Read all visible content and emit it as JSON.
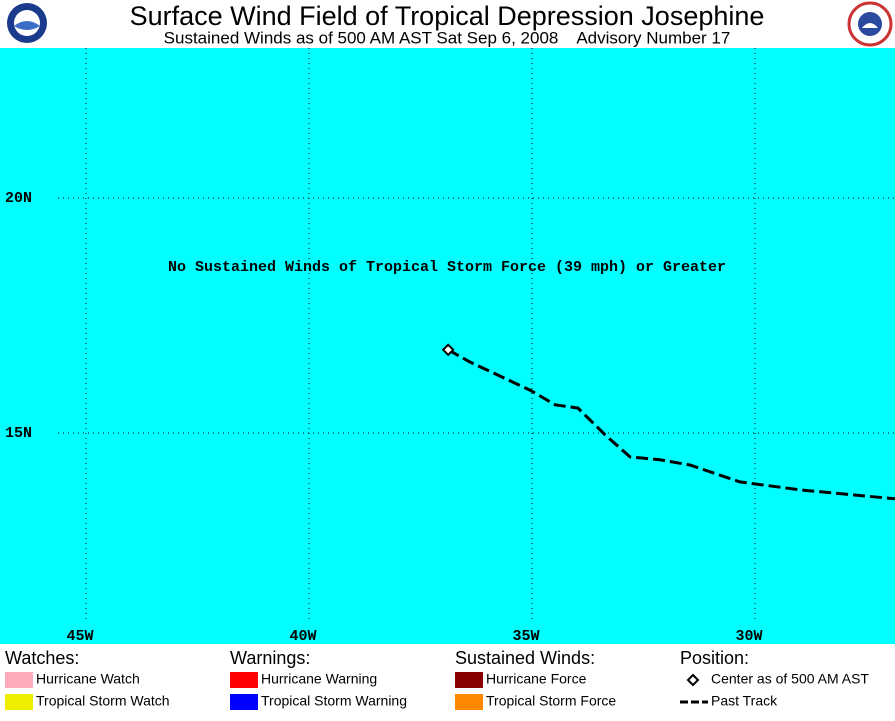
{
  "header": {
    "title": "Surface Wind Field of Tropical Depression Josephine",
    "subtitle": "Sustained Winds as of 500 AM AST Sat Sep 6, 2008    Advisory Number 17"
  },
  "map": {
    "message": "No Sustained Winds of Tropical Storm Force (39 mph) or Greater",
    "lon_ticks": [
      {
        "value": -45,
        "label": "45W"
      },
      {
        "value": -40,
        "label": "40W"
      },
      {
        "value": -35,
        "label": "35W"
      },
      {
        "value": -30,
        "label": "30W"
      }
    ],
    "lat_ticks": [
      {
        "value": 20,
        "label": "20N"
      },
      {
        "value": 15,
        "label": "15N"
      }
    ],
    "track": {
      "lon": [
        -36.88,
        -36.39,
        -35.04,
        -34.48,
        -33.97,
        -33.36,
        -32.8,
        -32.13,
        -31.46,
        -30.34,
        -28.99,
        -26.86
      ],
      "lat": [
        16.77,
        16.51,
        15.91,
        15.6,
        15.53,
        14.96,
        14.49,
        14.43,
        14.32,
        13.96,
        13.79,
        13.6
      ]
    }
  },
  "legend": [
    {
      "title": "Watches:",
      "items": [
        {
          "label": "Hurricane Watch",
          "color": "#ffaabb"
        },
        {
          "label": "Tropical Storm Watch",
          "color": "#eeee00"
        }
      ]
    },
    {
      "title": "Warnings:",
      "items": [
        {
          "label": "Hurricane Warning",
          "color": "#ff0000"
        },
        {
          "label": "Tropical Storm Warning",
          "color": "#0000ff"
        }
      ]
    },
    {
      "title": "Sustained Winds:",
      "items": [
        {
          "label": "Hurricane Force",
          "color": "#880000"
        },
        {
          "label": "Tropical Storm Force",
          "color": "#ff8800"
        }
      ]
    },
    {
      "title": "Position:",
      "items": [
        {
          "label": "Center as of 500 AM AST"
        },
        {
          "label": "Past Track"
        }
      ]
    }
  ]
}
